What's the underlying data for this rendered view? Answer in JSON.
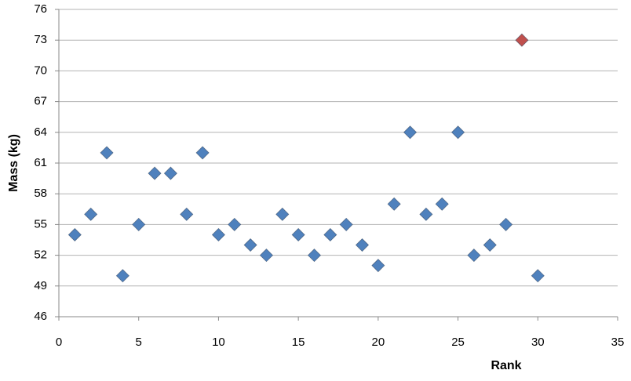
{
  "chart_data": {
    "type": "scatter",
    "x_label": "Rank",
    "y_label": "Mass (kg)",
    "x": [
      1,
      2,
      3,
      4,
      5,
      6,
      7,
      8,
      9,
      10,
      11,
      12,
      13,
      14,
      15,
      16,
      17,
      18,
      19,
      20,
      21,
      22,
      23,
      24,
      25,
      26,
      27,
      28,
      29,
      30
    ],
    "values": [
      54,
      56,
      62,
      50,
      55,
      60,
      60,
      56,
      62,
      54,
      55,
      53,
      52,
      56,
      54,
      52,
      54,
      55,
      53,
      51,
      57,
      64,
      56,
      57,
      64,
      52,
      53,
      55,
      73,
      50
    ],
    "colors": [
      "#4f81bd",
      "#4f81bd",
      "#4f81bd",
      "#4f81bd",
      "#4f81bd",
      "#4f81bd",
      "#4f81bd",
      "#4f81bd",
      "#4f81bd",
      "#4f81bd",
      "#4f81bd",
      "#4f81bd",
      "#4f81bd",
      "#4f81bd",
      "#4f81bd",
      "#4f81bd",
      "#4f81bd",
      "#4f81bd",
      "#4f81bd",
      "#4f81bd",
      "#4f81bd",
      "#4f81bd",
      "#4f81bd",
      "#4f81bd",
      "#4f81bd",
      "#4f81bd",
      "#4f81bd",
      "#4f81bd",
      "#c0504d",
      "#4f81bd"
    ],
    "xlim": [
      0,
      35
    ],
    "xticks": [
      0,
      5,
      10,
      15,
      20,
      25,
      30,
      35
    ],
    "ylim": [
      46,
      76
    ],
    "yticks": [
      46,
      49,
      52,
      55,
      58,
      61,
      64,
      67,
      70,
      73,
      76
    ],
    "grid": true
  }
}
